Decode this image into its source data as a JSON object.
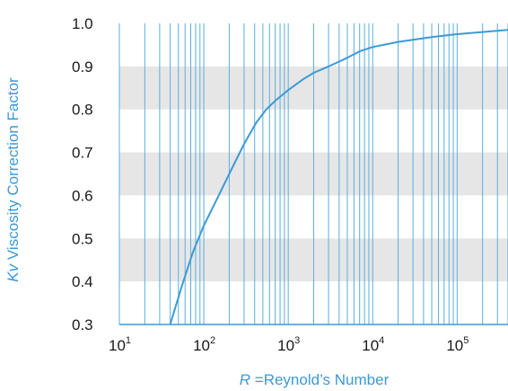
{
  "chart_data": {
    "type": "line",
    "x_scale": "log",
    "xlim": [
      10,
      400000
    ],
    "ylim": [
      0.3,
      1.0
    ],
    "x_ticks": [
      {
        "value": 10,
        "base": "10",
        "exp": "1"
      },
      {
        "value": 100,
        "base": "10",
        "exp": "2"
      },
      {
        "value": 1000,
        "base": "10",
        "exp": "3"
      },
      {
        "value": 10000,
        "base": "10",
        "exp": "4"
      },
      {
        "value": 100000,
        "base": "10",
        "exp": "5"
      }
    ],
    "y_ticks": [
      "0.3",
      "0.4",
      "0.5",
      "0.6",
      "0.7",
      "0.8",
      "0.9",
      "1.0"
    ],
    "xlabel": {
      "symbol": "R",
      "text": " =Reynold’s Number"
    },
    "ylabel": {
      "symbol": "Kv",
      "text": "  Viscosity Correction Factor"
    },
    "band_ranges": [
      [
        0.4,
        0.5
      ],
      [
        0.6,
        0.7
      ],
      [
        0.8,
        0.9
      ]
    ],
    "series": [
      {
        "x": [
          40,
          55,
          75,
          100,
          150,
          200,
          300,
          420,
          550,
          700,
          1000,
          1500,
          2000,
          3000,
          5000,
          7000,
          10000,
          20000,
          50000,
          100000,
          200000,
          400000
        ],
        "y": [
          0.3,
          0.39,
          0.47,
          0.53,
          0.6,
          0.65,
          0.72,
          0.77,
          0.8,
          0.82,
          0.845,
          0.87,
          0.885,
          0.9,
          0.92,
          0.935,
          0.945,
          0.957,
          0.968,
          0.975,
          0.98,
          0.985
        ]
      }
    ],
    "colors": {
      "line": "#3b9ad6",
      "grid": "#5aaee0",
      "band": "#e6e6e6",
      "axis": "#3b9ad6",
      "label": "#3b9ad6"
    }
  }
}
